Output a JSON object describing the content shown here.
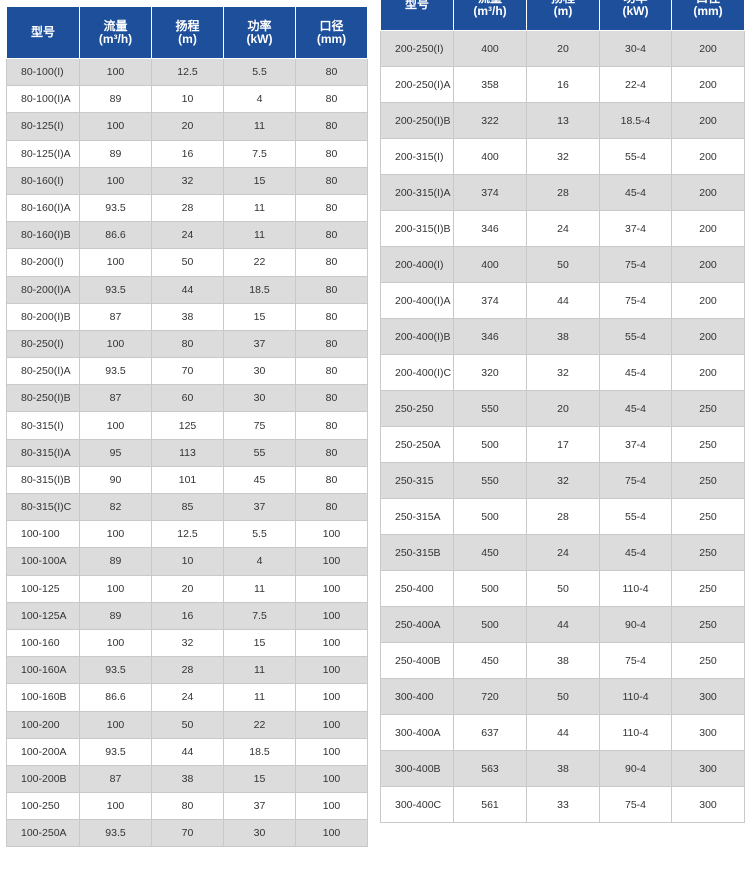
{
  "headers": [
    "型号",
    "流量\n(m³/h)",
    "扬程\n(m)",
    "功率\n(kW)",
    "口径\n(mm)"
  ],
  "left_rows": [
    [
      "80-100(I)",
      "100",
      "12.5",
      "5.5",
      "80"
    ],
    [
      "80-100(I)A",
      "89",
      "10",
      "4",
      "80"
    ],
    [
      "80-125(I)",
      "100",
      "20",
      "11",
      "80"
    ],
    [
      "80-125(I)A",
      "89",
      "16",
      "7.5",
      "80"
    ],
    [
      "80-160(I)",
      "100",
      "32",
      "15",
      "80"
    ],
    [
      "80-160(I)A",
      "93.5",
      "28",
      "11",
      "80"
    ],
    [
      "80-160(I)B",
      "86.6",
      "24",
      "11",
      "80"
    ],
    [
      "80-200(I)",
      "100",
      "50",
      "22",
      "80"
    ],
    [
      "80-200(I)A",
      "93.5",
      "44",
      "18.5",
      "80"
    ],
    [
      "80-200(I)B",
      "87",
      "38",
      "15",
      "80"
    ],
    [
      "80-250(I)",
      "100",
      "80",
      "37",
      "80"
    ],
    [
      "80-250(I)A",
      "93.5",
      "70",
      "30",
      "80"
    ],
    [
      "80-250(I)B",
      "87",
      "60",
      "30",
      "80"
    ],
    [
      "80-315(I)",
      "100",
      "125",
      "75",
      "80"
    ],
    [
      "80-315(I)A",
      "95",
      "113",
      "55",
      "80"
    ],
    [
      "80-315(I)B",
      "90",
      "101",
      "45",
      "80"
    ],
    [
      "80-315(I)C",
      "82",
      "85",
      "37",
      "80"
    ],
    [
      "100-100",
      "100",
      "12.5",
      "5.5",
      "100"
    ],
    [
      "100-100A",
      "89",
      "10",
      "4",
      "100"
    ],
    [
      "100-125",
      "100",
      "20",
      "11",
      "100"
    ],
    [
      "100-125A",
      "89",
      "16",
      "7.5",
      "100"
    ],
    [
      "100-160",
      "100",
      "32",
      "15",
      "100"
    ],
    [
      "100-160A",
      "93.5",
      "28",
      "11",
      "100"
    ],
    [
      "100-160B",
      "86.6",
      "24",
      "11",
      "100"
    ],
    [
      "100-200",
      "100",
      "50",
      "22",
      "100"
    ],
    [
      "100-200A",
      "93.5",
      "44",
      "18.5",
      "100"
    ],
    [
      "100-200B",
      "87",
      "38",
      "15",
      "100"
    ],
    [
      "100-250",
      "100",
      "80",
      "37",
      "100"
    ],
    [
      "100-250A",
      "93.5",
      "70",
      "30",
      "100"
    ]
  ],
  "right_rows": [
    [
      "200-250(I)",
      "400",
      "20",
      "30-4",
      "200"
    ],
    [
      "200-250(I)A",
      "358",
      "16",
      "22-4",
      "200"
    ],
    [
      "200-250(I)B",
      "322",
      "13",
      "18.5-4",
      "200"
    ],
    [
      "200-315(I)",
      "400",
      "32",
      "55-4",
      "200"
    ],
    [
      "200-315(I)A",
      "374",
      "28",
      "45-4",
      "200"
    ],
    [
      "200-315(I)B",
      "346",
      "24",
      "37-4",
      "200"
    ],
    [
      "200-400(I)",
      "400",
      "50",
      "75-4",
      "200"
    ],
    [
      "200-400(I)A",
      "374",
      "44",
      "75-4",
      "200"
    ],
    [
      "200-400(I)B",
      "346",
      "38",
      "55-4",
      "200"
    ],
    [
      "200-400(I)C",
      "320",
      "32",
      "45-4",
      "200"
    ],
    [
      "250-250",
      "550",
      "20",
      "45-4",
      "250"
    ],
    [
      "250-250A",
      "500",
      "17",
      "37-4",
      "250"
    ],
    [
      "250-315",
      "550",
      "32",
      "75-4",
      "250"
    ],
    [
      "250-315A",
      "500",
      "28",
      "55-4",
      "250"
    ],
    [
      "250-315B",
      "450",
      "24",
      "45-4",
      "250"
    ],
    [
      "250-400",
      "500",
      "50",
      "110-4",
      "250"
    ],
    [
      "250-400A",
      "500",
      "44",
      "90-4",
      "250"
    ],
    [
      "250-400B",
      "450",
      "38",
      "75-4",
      "250"
    ],
    [
      "300-400",
      "720",
      "50",
      "110-4",
      "300"
    ],
    [
      "300-400A",
      "637",
      "44",
      "110-4",
      "300"
    ],
    [
      "300-400B",
      "563",
      "38",
      "90-4",
      "300"
    ],
    [
      "300-400C",
      "561",
      "33",
      "75-4",
      "300"
    ]
  ]
}
